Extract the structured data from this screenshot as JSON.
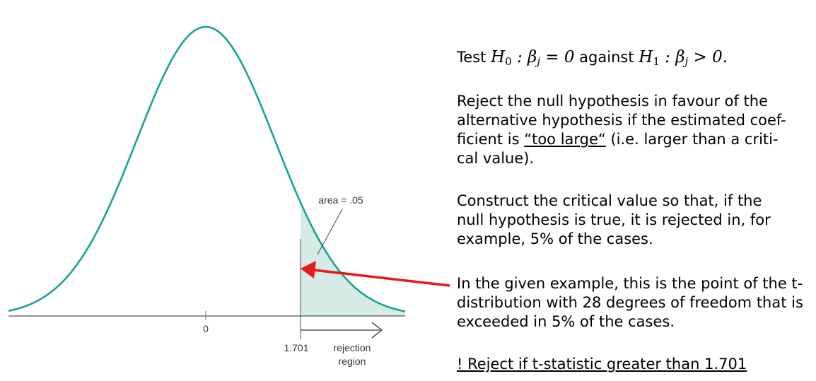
{
  "diagram": {
    "zero_tick_label": "0",
    "critical_tick_label": "1.701",
    "area_label": "area = .05",
    "rejection_label_line1": "rejection",
    "rejection_label_line2": "region",
    "colors": {
      "curve": "#17a396",
      "shade": "#d7ebe6",
      "axis": "#555555",
      "arrow": "#e81919"
    }
  },
  "text": {
    "p1_prefix": "Test ",
    "p1_h0_name": "H",
    "p1_h0_sub": "0",
    "p1_h0_rest": " : β",
    "p1_j1": "j",
    "p1_h0_eq": " = 0",
    "p1_mid": " against ",
    "p1_h1_name": "H",
    "p1_h1_sub": "1",
    "p1_h1_rest": " : β",
    "p1_j2": "j",
    "p1_h1_gt": " > 0.",
    "p2_before": "Reject the null hypothesis in favour of the alternative hypothesis if the estimated coef-ficient is ",
    "p2_underlined": "“too large“",
    "p2_after": " (i.e. larger than a criti-cal value).",
    "p3": "Construct the critical value so that, if the null hypothesis is true, it is rejected in, for example, 5% of the cases.",
    "p4": "In the given example, this is the point of the t-distribution with 28 degrees of freedom that is exceeded in 5% of the cases.",
    "p5": "! Reject if t-statistic greater than 1.701"
  }
}
